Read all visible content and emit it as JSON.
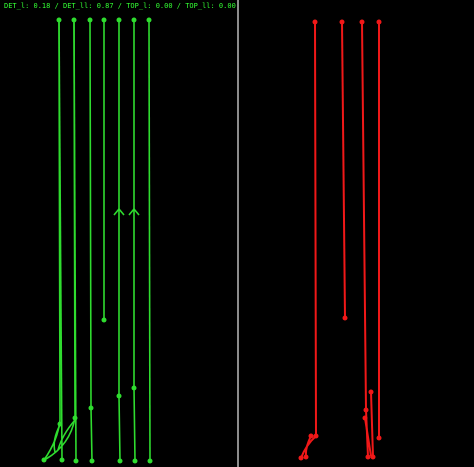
{
  "header": {
    "text": "DET_l: 0.18 / DET_ll: 0.87 / TOP_l: 0.00 / TOP_ll: 0.00"
  }
}
